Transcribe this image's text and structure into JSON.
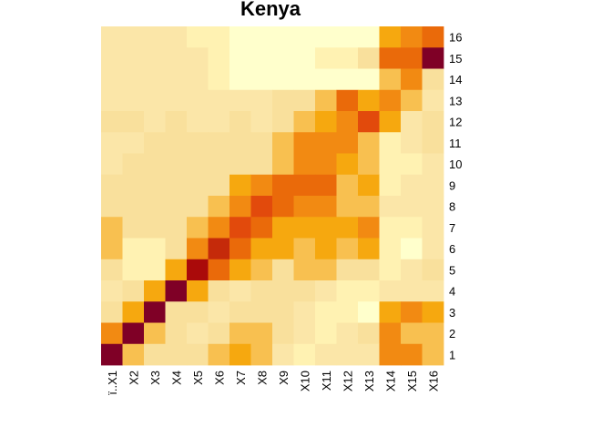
{
  "chart_data": {
    "type": "heatmap",
    "title": "Kenya",
    "x_labels": [
      "ï..X1",
      "X2",
      "X3",
      "X4",
      "X5",
      "X6",
      "X7",
      "X8",
      "X9",
      "X10",
      "X11",
      "X12",
      "X13",
      "X14",
      "X15",
      "X16"
    ],
    "y_labels": [
      "1",
      "2",
      "3",
      "4",
      "5",
      "6",
      "7",
      "8",
      "9",
      "10",
      "11",
      "12",
      "13",
      "14",
      "15",
      "16"
    ],
    "color_scale": [
      "#FFFFCC",
      "#FFF2B2",
      "#FBE6A8",
      "#F9E09C",
      "#F7D37F",
      "#F8C050",
      "#F6A80F",
      "#F28A12",
      "#EA6A0A",
      "#E24A0C",
      "#C52A0A",
      "#AA0A0A",
      "#7F0026"
    ],
    "color_scale_note": "levels 0 (light) to 12 (dark)",
    "rows_top_to_bottom": [
      [
        2,
        2,
        2,
        2,
        1,
        1,
        0,
        0,
        0,
        0,
        0,
        0,
        0,
        6,
        7,
        8
      ],
      [
        2,
        2,
        2,
        2,
        2,
        1,
        0,
        0,
        0,
        0,
        1,
        1,
        3,
        8,
        8,
        12
      ],
      [
        2,
        2,
        2,
        2,
        2,
        1,
        0,
        0,
        0,
        0,
        0,
        0,
        0,
        5,
        7,
        3
      ],
      [
        2,
        2,
        2,
        2,
        2,
        2,
        2,
        2,
        3,
        3,
        5,
        8,
        6,
        7,
        5,
        2
      ],
      [
        3,
        3,
        2,
        3,
        2,
        2,
        3,
        2,
        3,
        5,
        6,
        7,
        9,
        6,
        2,
        3
      ],
      [
        2,
        2,
        3,
        3,
        3,
        3,
        3,
        3,
        5,
        7,
        7,
        7,
        5,
        1,
        2,
        3
      ],
      [
        2,
        3,
        3,
        3,
        3,
        3,
        3,
        3,
        5,
        7,
        7,
        6,
        5,
        1,
        1,
        2
      ],
      [
        3,
        3,
        3,
        3,
        3,
        3,
        6,
        7,
        8,
        8,
        8,
        5,
        6,
        1,
        2,
        2
      ],
      [
        3,
        3,
        3,
        3,
        3,
        5,
        7,
        9,
        8,
        7,
        7,
        5,
        5,
        2,
        2,
        2
      ],
      [
        5,
        3,
        3,
        3,
        5,
        7,
        9,
        8,
        6,
        6,
        6,
        6,
        7,
        1,
        1,
        2
      ],
      [
        5,
        1,
        1,
        3,
        7,
        10,
        8,
        6,
        6,
        5,
        6,
        5,
        6,
        1,
        0,
        2
      ],
      [
        3,
        1,
        1,
        6,
        11,
        8,
        6,
        5,
        3,
        5,
        5,
        3,
        3,
        1,
        2,
        3
      ],
      [
        2,
        3,
        6,
        12,
        6,
        3,
        2,
        3,
        3,
        3,
        2,
        1,
        1,
        2,
        2,
        2
      ],
      [
        3,
        6,
        12,
        3,
        3,
        2,
        3,
        3,
        3,
        2,
        1,
        1,
        0,
        6,
        7,
        6
      ],
      [
        7,
        12,
        5,
        3,
        2,
        3,
        5,
        5,
        3,
        2,
        1,
        2,
        3,
        7,
        5,
        5
      ],
      [
        12,
        5,
        3,
        3,
        3,
        5,
        6,
        5,
        2,
        1,
        2,
        2,
        2,
        7,
        7,
        5
      ]
    ]
  }
}
